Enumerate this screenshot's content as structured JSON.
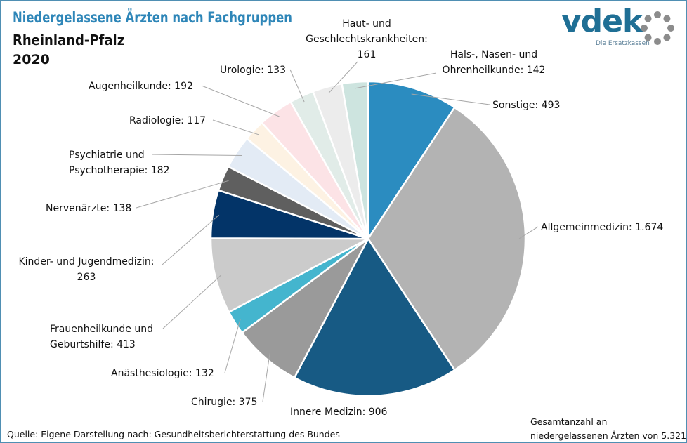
{
  "chart": {
    "title": "Niedergelassene Ärzten nach Fachgruppen",
    "subtitle": "Rheinland-Pfalz",
    "year": "2020"
  },
  "logo": {
    "word": "vdek",
    "tagline": "Die Ersatzkassen",
    "color": "#1f6f95",
    "ring_color": "#8c8c8c"
  },
  "footer": {
    "source": "Quelle: Eigene Darstellung nach: Gesundheitsberichterstattung  des Bundes",
    "total_line1": "Gesamtanzahl an",
    "total_line2": "niedergelassenen  Ärzten von 5.321"
  },
  "chart_data": {
    "type": "pie",
    "title": "Niedergelassene Ärzten nach Fachgruppen",
    "subtitle": "Rheinland-Pfalz",
    "total": 5321,
    "start": "12 o'clock",
    "direction": "clockwise",
    "slices": [
      {
        "name": "Sonstige",
        "value": 493,
        "color": "#2b8cc0",
        "label": [
          "Sonstige: 493"
        ]
      },
      {
        "name": "Allgemeinmedizin",
        "value": 1674,
        "color": "#b3b3b3",
        "label": [
          "Allgemeinmedizin: 1.674"
        ]
      },
      {
        "name": "Innere Medizin",
        "value": 906,
        "color": "#175a84",
        "label": [
          "Innere Medizin: 906"
        ]
      },
      {
        "name": "Chirugie",
        "value": 375,
        "color": "#9a9a9a",
        "label": [
          "Chirugie: 375"
        ]
      },
      {
        "name": "Anästhesiologie",
        "value": 132,
        "color": "#44b5ce",
        "label": [
          "Anästhesiologie: 132"
        ]
      },
      {
        "name": "Frauenheilkunde und Geburtshilfe",
        "value": 413,
        "color": "#cbcbcb",
        "label": [
          "Frauenheilkunde und",
          "Geburtshilfe: 413"
        ]
      },
      {
        "name": "Kinder- und Jugendmedizin",
        "value": 263,
        "color": "#033468",
        "label": [
          "Kinder- und Jugendmedizin:",
          "263"
        ]
      },
      {
        "name": "Nervenärzte",
        "value": 138,
        "color": "#5f5f5f",
        "label": [
          "Nervenärzte: 138"
        ]
      },
      {
        "name": "Psychiatrie und Psychotherapie",
        "value": 182,
        "color": "#e3ebf5",
        "label": [
          "Psychiatrie und",
          "Psychotherapie: 182"
        ]
      },
      {
        "name": "Radiologie",
        "value": 117,
        "color": "#fdf2e3",
        "label": [
          "Radiologie: 117"
        ]
      },
      {
        "name": "Augenheilkunde",
        "value": 192,
        "color": "#fce3e6",
        "label": [
          "Augenheilkunde: 192"
        ]
      },
      {
        "name": "Urologie",
        "value": 133,
        "color": "#e1ece8",
        "label": [
          "Urologie: 133"
        ]
      },
      {
        "name": "Haut- und Geschlechtskrankheiten",
        "value": 161,
        "color": "#ececec",
        "label": [
          "Haut- und",
          "Geschlechtskrankheiten:",
          "161"
        ]
      },
      {
        "name": "Hals-, Nasen- und Ohrenheilkunde",
        "value": 142,
        "color": "#cde4df",
        "label": [
          "Hals-, Nasen- und",
          "Ohrenheilkunde: 142"
        ]
      }
    ]
  }
}
